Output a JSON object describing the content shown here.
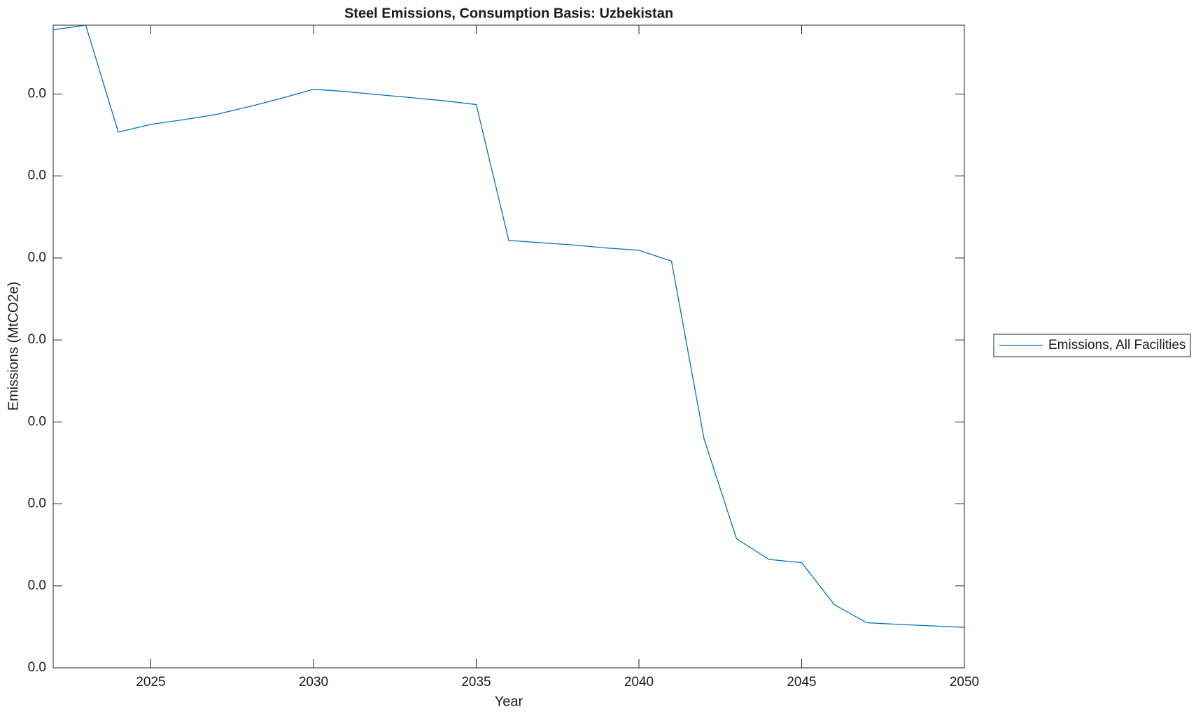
{
  "chart_data": {
    "type": "line",
    "title": "Steel Emissions, Consumption Basis: Uzbekistan",
    "xlabel": "Year",
    "ylabel": "Emissions (MtCO2e)",
    "x": [
      2022,
      2023,
      2024,
      2025,
      2026,
      2027,
      2028,
      2029,
      2030,
      2031,
      2032,
      2033,
      2034,
      2035,
      2036,
      2037,
      2038,
      2039,
      2040,
      2041,
      2042,
      2043,
      2044,
      2045,
      2046,
      2047,
      2048,
      2049,
      2050
    ],
    "series": [
      {
        "name": "Emissions, All Facilities",
        "color": "#0072bd",
        "values": [
          0.03892,
          0.0392,
          0.03268,
          0.03315,
          0.03343,
          0.03375,
          0.03422,
          0.03473,
          0.03529,
          0.03515,
          0.03496,
          0.03478,
          0.03459,
          0.03436,
          0.02607,
          0.02593,
          0.02579,
          0.02561,
          0.02547,
          0.02481,
          0.01397,
          0.00787,
          0.00661,
          0.00642,
          0.00386,
          0.00275,
          0.00265,
          0.00256,
          0.00247
        ]
      }
    ],
    "xlim": [
      2022,
      2050
    ],
    "xticks": [
      2025,
      2030,
      2035,
      2040,
      2045,
      2050
    ],
    "ylim": [
      0,
      0.0392
    ],
    "yticks": [
      {
        "value": 0,
        "label": "0.0"
      },
      {
        "value": 0.005,
        "label": "0.0"
      },
      {
        "value": 0.01,
        "label": "0.0"
      },
      {
        "value": 0.015,
        "label": "0.0"
      },
      {
        "value": 0.02,
        "label": "0.0"
      },
      {
        "value": 0.025,
        "label": "0.0"
      },
      {
        "value": 0.03,
        "label": "0.0"
      },
      {
        "value": 0.035,
        "label": "0.0"
      }
    ],
    "grid": false,
    "legend": "outside-right"
  }
}
